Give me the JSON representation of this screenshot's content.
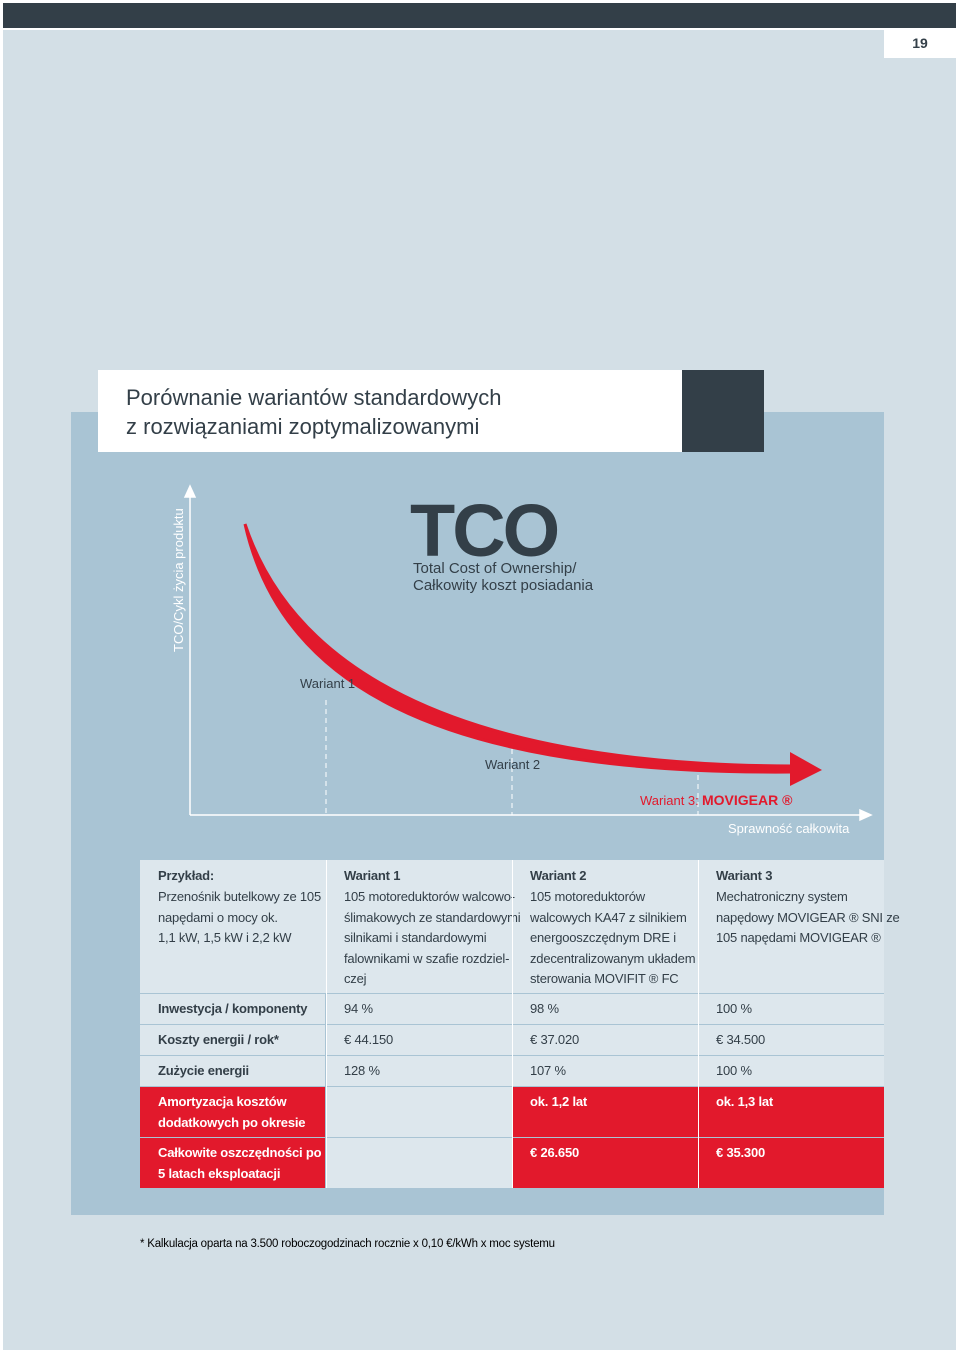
{
  "header": {
    "page_number": "19"
  },
  "title": [
    "Porównanie wariantów standardowych",
    "z rozwiązaniami zoptymalizowanymi"
  ],
  "diagram": {
    "y_axis_label": "TCO/Cykl życia produktu",
    "tco": "TCO",
    "tco_subtitle": [
      "Total Cost of Ownership/",
      "Całkowity koszt posiadania"
    ],
    "variants": [
      "Wariant 1",
      "Wariant 2",
      "Wariant 3:"
    ],
    "brand": "MOVIGEAR ®",
    "x_axis_label": "Sprawność całkowita"
  },
  "table": {
    "header": [
      {
        "title": "Przykład:",
        "lines": [
          "Przenośnik butelkowy ze 105",
          "napędami o mocy ok.",
          "1,1 kW, 1,5 kW i 2,2 kW"
        ]
      },
      {
        "title": "Wariant 1",
        "lines": [
          "105 motoreduktorów walcowo-",
          "ślimakowych ze standardowymi",
          "silnikami i standardowymi",
          "falownikami w szafie rozdziel-",
          "czej"
        ]
      },
      {
        "title": "Wariant 2",
        "lines": [
          "105 motoreduktorów",
          "walcowych KA47 z silnikiem",
          "energooszczędnym DRE i",
          "zdecentralizowanym układem",
          "sterowania MOVIFIT ® FC"
        ]
      },
      {
        "title": "Wariant 3",
        "lines": [
          "Mechatroniczny system",
          "napędowy MOVIGEAR ® SNI ze",
          "105 napędami MOVIGEAR ®"
        ]
      }
    ],
    "rows": [
      {
        "label": [
          "Inwestycja / komponenty"
        ],
        "values": [
          "94 %",
          "98 %",
          "100 %"
        ]
      },
      {
        "label": [
          "Koszty energii / rok*"
        ],
        "values": [
          "€ 44.150",
          "€ 37.020",
          "€ 34.500"
        ]
      },
      {
        "label": [
          "Zużycie energii"
        ],
        "values": [
          "128 %",
          "107 %",
          "100 %"
        ]
      },
      {
        "label": [
          "Amortyzacja kosztów",
          "dodatkowych po okresie"
        ],
        "values": [
          null,
          "ok. 1,2 lat",
          "ok. 1,3 lat"
        ]
      },
      {
        "label": [
          "Całkowite oszczędności po",
          "5 latach eksploatacji"
        ],
        "values": [
          null,
          "€ 26.650",
          "€ 35.300"
        ]
      }
    ]
  },
  "footnote": "* Kalkulacja oparta na 3.500 roboczogodzinach rocznie x 0,10 €/kWh x moc systemu"
}
